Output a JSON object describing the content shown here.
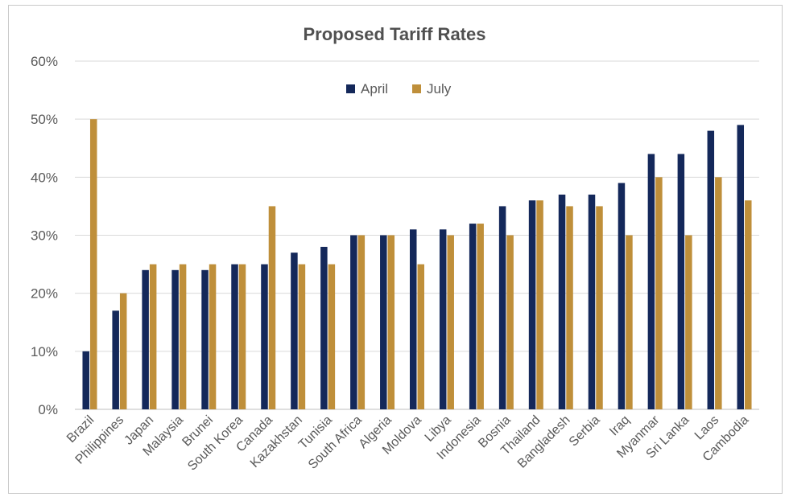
{
  "chart_data": {
    "type": "bar",
    "title": "Proposed Tariff Rates",
    "xlabel": "",
    "ylabel": "",
    "ylim": [
      0,
      60
    ],
    "y_ticks": [
      "0%",
      "10%",
      "20%",
      "30%",
      "40%",
      "50%",
      "60%"
    ],
    "grid": true,
    "legend_position": "top-center",
    "categories": [
      "Brazil",
      "Philippines",
      "Japan",
      "Malaysia",
      "Brunei",
      "South Korea",
      "Canada",
      "Kazakhstan",
      "Tunisia",
      "South Africa",
      "Algeria",
      "Moldova",
      "Libya",
      "Indonesia",
      "Bosnia",
      "Thailand",
      "Bangladesh",
      "Serbia",
      "Iraq",
      "Myanmar",
      "Sri Lanka",
      "Laos",
      "Cambodia"
    ],
    "series": [
      {
        "name": "April",
        "color": "#14285a",
        "values": [
          10,
          17,
          24,
          24,
          24,
          25,
          25,
          27,
          28,
          30,
          30,
          31,
          31,
          32,
          35,
          36,
          37,
          37,
          39,
          44,
          44,
          48,
          49
        ]
      },
      {
        "name": "July",
        "color": "#bf8f3a",
        "values": [
          50,
          20,
          25,
          25,
          25,
          25,
          35,
          25,
          25,
          30,
          30,
          25,
          30,
          32,
          30,
          36,
          35,
          35,
          30,
          40,
          30,
          40,
          36
        ]
      }
    ]
  }
}
